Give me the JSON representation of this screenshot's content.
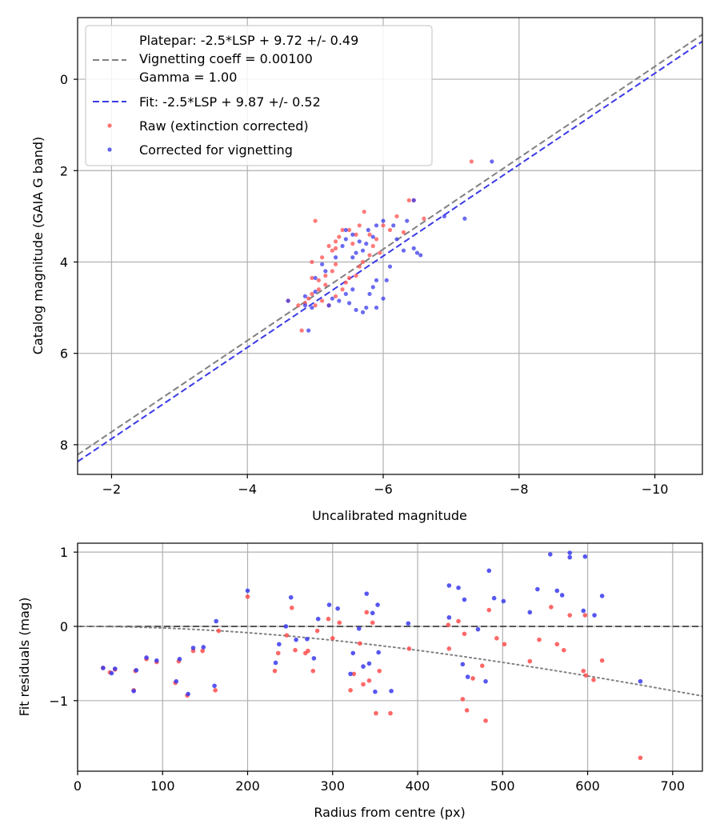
{
  "chart_data": [
    {
      "type": "scatter",
      "xlabel": "Uncalibrated magnitude",
      "ylabel": "Catalog magnitude (GAIA G band)",
      "xlim": [
        -1.5,
        -10.7
      ],
      "ylim": [
        8.65,
        -1.35
      ],
      "xticks": [
        -2,
        -4,
        -6,
        -8,
        -10
      ],
      "xtick_labels": [
        "−2",
        "−4",
        "−6",
        "−8",
        "−10"
      ],
      "yticks": [
        0,
        2,
        4,
        6,
        8
      ],
      "ytick_labels": [
        "0",
        "2",
        "4",
        "6",
        "8"
      ],
      "grid": true,
      "legend_position": "top-left",
      "legend": {
        "platepar_lines": [
          "Platepar: -2.5*LSP + 9.72 +/- 0.49",
          "Vignetting coeff = 0.00100",
          "Gamma = 1.00"
        ],
        "fit": "Fit: -2.5*LSP + 9.87 +/- 0.52",
        "raw": "Raw (extinction corrected)",
        "corrected": "Corrected for vignetting"
      },
      "colors": {
        "platepar": "#808080",
        "fit": "#3a3ae8",
        "raw": "#ff4d4d",
        "corrected": "#3a3aee",
        "overlap": "#7a0a8a"
      },
      "lines": [
        {
          "name": "Platepar",
          "slope_lsp": -2.5,
          "intercept": 9.72
        },
        {
          "name": "Fit",
          "slope_lsp": -2.5,
          "intercept": 9.87
        }
      ],
      "series": [
        {
          "name": "Raw (extinction corrected)",
          "points": [
            [
              -7.3,
              1.8
            ],
            [
              -6.6,
              3.05
            ],
            [
              -6.45,
              2.65
            ],
            [
              -6.38,
              2.65
            ],
            [
              -6.2,
              3.0
            ],
            [
              -6.0,
              3.2
            ],
            [
              -5.9,
              3.5
            ],
            [
              -5.8,
              3.4
            ],
            [
              -5.72,
              2.9
            ],
            [
              -5.65,
              3.2
            ],
            [
              -5.6,
              3.4
            ],
            [
              -5.55,
              3.6
            ],
            [
              -5.5,
              3.3
            ],
            [
              -5.4,
              3.3
            ],
            [
              -5.35,
              3.45
            ],
            [
              -5.3,
              3.55
            ],
            [
              -5.3,
              3.7
            ],
            [
              -5.25,
              3.75
            ],
            [
              -5.2,
              3.65
            ],
            [
              -5.1,
              3.9
            ],
            [
              -5.0,
              3.1
            ],
            [
              -4.95,
              4.0
            ],
            [
              -5.3,
              4.05
            ],
            [
              -5.25,
              4.2
            ],
            [
              -5.15,
              4.3
            ],
            [
              -5.05,
              4.4
            ],
            [
              -4.95,
              4.35
            ],
            [
              -5.15,
              4.5
            ],
            [
              -5.05,
              4.6
            ],
            [
              -4.95,
              4.7
            ],
            [
              -4.9,
              4.8
            ],
            [
              -5.1,
              4.85
            ],
            [
              -4.85,
              4.9
            ],
            [
              -4.75,
              4.95
            ],
            [
              -5.2,
              4.95
            ],
            [
              -5.0,
              4.95
            ],
            [
              -5.3,
              4.75
            ],
            [
              -5.4,
              4.6
            ],
            [
              -5.45,
              4.45
            ],
            [
              -5.5,
              4.35
            ],
            [
              -5.6,
              4.3
            ],
            [
              -5.65,
              4.1
            ],
            [
              -5.7,
              4.0
            ],
            [
              -4.8,
              5.5
            ],
            [
              -4.6,
              4.85
            ],
            [
              -5.8,
              3.85
            ],
            [
              -5.85,
              3.65
            ],
            [
              -5.95,
              3.8
            ],
            [
              -6.1,
              3.3
            ],
            [
              -6.3,
              3.35
            ]
          ]
        },
        {
          "name": "Corrected for vignetting",
          "points": [
            [
              -7.6,
              1.8
            ],
            [
              -7.2,
              3.05
            ],
            [
              -6.9,
              3.0
            ],
            [
              -6.45,
              2.65
            ],
            [
              -6.35,
              3.1
            ],
            [
              -6.45,
              3.7
            ],
            [
              -6.5,
              3.8
            ],
            [
              -6.55,
              3.85
            ],
            [
              -6.3,
              3.75
            ],
            [
              -6.2,
              3.5
            ],
            [
              -6.15,
              3.2
            ],
            [
              -6.0,
              3.1
            ],
            [
              -5.9,
              3.2
            ],
            [
              -5.85,
              3.45
            ],
            [
              -5.78,
              3.3
            ],
            [
              -5.75,
              3.6
            ],
            [
              -5.7,
              3.75
            ],
            [
              -5.6,
              3.8
            ],
            [
              -5.55,
              3.9
            ],
            [
              -5.45,
              3.5
            ],
            [
              -5.4,
              3.65
            ],
            [
              -6.1,
              4.1
            ],
            [
              -6.05,
              4.4
            ],
            [
              -6.0,
              4.8
            ],
            [
              -5.9,
              4.4
            ],
            [
              -5.85,
              4.55
            ],
            [
              -5.8,
              4.7
            ],
            [
              -5.75,
              5.0
            ],
            [
              -5.7,
              5.1
            ],
            [
              -5.6,
              5.05
            ],
            [
              -5.9,
              5.0
            ],
            [
              -5.5,
              4.9
            ],
            [
              -5.55,
              4.6
            ],
            [
              -5.45,
              4.7
            ],
            [
              -5.35,
              4.85
            ],
            [
              -5.25,
              4.8
            ],
            [
              -5.2,
              4.95
            ],
            [
              -5.15,
              4.2
            ],
            [
              -5.1,
              4.05
            ],
            [
              -5.0,
              4.35
            ],
            [
              -5.3,
              3.9
            ],
            [
              -5.65,
              3.55
            ],
            [
              -5.55,
              3.4
            ],
            [
              -5.45,
              3.3
            ],
            [
              -4.95,
              5.0
            ],
            [
              -4.85,
              4.95
            ],
            [
              -4.9,
              5.5
            ],
            [
              -4.6,
              4.85
            ],
            [
              -5.0,
              4.65
            ],
            [
              -4.85,
              4.75
            ]
          ]
        }
      ]
    },
    {
      "type": "scatter",
      "xlabel": "Radius from centre (px)",
      "ylabel": "Fit residuals (mag)",
      "xlim": [
        0,
        735
      ],
      "ylim": [
        -1.95,
        1.12
      ],
      "xticks": [
        0,
        100,
        200,
        300,
        400,
        500,
        600,
        700
      ],
      "xtick_labels": [
        "0",
        "100",
        "200",
        "300",
        "400",
        "500",
        "600",
        "700"
      ],
      "yticks": [
        1,
        0,
        -1
      ],
      "ytick_labels": [
        "1",
        "0",
        "−1"
      ],
      "grid": true,
      "zero_line": 0,
      "vignetting_coeff": 0.001,
      "vignetting_curve": "dotted",
      "series": [
        {
          "name": "Raw",
          "points": [
            [
              30,
              -0.56
            ],
            [
              38,
              -0.62
            ],
            [
              44,
              -0.58
            ],
            [
              66,
              -0.86
            ],
            [
              68,
              -0.6
            ],
            [
              81,
              -0.44
            ],
            [
              93,
              -0.48
            ],
            [
              115,
              -0.76
            ],
            [
              119,
              -0.47
            ],
            [
              129,
              -0.93
            ],
            [
              136,
              -0.33
            ],
            [
              147,
              -0.33
            ],
            [
              162,
              -0.86
            ],
            [
              166,
              -0.06
            ],
            [
              200,
              0.4
            ],
            [
              232,
              -0.6
            ],
            [
              236,
              -0.36
            ],
            [
              246,
              -0.12
            ],
            [
              252,
              0.25
            ],
            [
              256,
              -0.32
            ],
            [
              268,
              -0.36
            ],
            [
              271,
              -0.33
            ],
            [
              277,
              -0.6
            ],
            [
              282,
              -0.06
            ],
            [
              295,
              0.1
            ],
            [
              300,
              -0.16
            ],
            [
              308,
              0.05
            ],
            [
              321,
              -0.86
            ],
            [
              325,
              -0.64
            ],
            [
              332,
              -0.23
            ],
            [
              336,
              -0.78
            ],
            [
              340,
              0.19
            ],
            [
              343,
              -0.73
            ],
            [
              347,
              0.05
            ],
            [
              351,
              -1.17
            ],
            [
              355,
              -0.6
            ],
            [
              368,
              -1.17
            ],
            [
              390,
              -0.3
            ],
            [
              436,
              0.02
            ],
            [
              437,
              -0.3
            ],
            [
              448,
              0.07
            ],
            [
              453,
              -0.98
            ],
            [
              455,
              -0.1
            ],
            [
              458,
              -1.13
            ],
            [
              465,
              -0.7
            ],
            [
              476,
              -0.53
            ],
            [
              480,
              -1.27
            ],
            [
              484,
              0.22
            ],
            [
              493,
              -0.16
            ],
            [
              502,
              -0.24
            ],
            [
              532,
              -0.47
            ],
            [
              543,
              -0.18
            ],
            [
              557,
              0.26
            ],
            [
              564,
              -0.24
            ],
            [
              572,
              -0.32
            ],
            [
              579,
              0.15
            ],
            [
              595,
              -0.6
            ],
            [
              597,
              0.15
            ],
            [
              598,
              -0.66
            ],
            [
              607,
              -0.72
            ],
            [
              617,
              -0.46
            ],
            [
              662,
              -1.77
            ]
          ]
        },
        {
          "name": "Corrected for vignetting",
          "points": [
            [
              30,
              -0.56
            ],
            [
              40,
              -0.63
            ],
            [
              44,
              -0.57
            ],
            [
              66,
              -0.87
            ],
            [
              69,
              -0.59
            ],
            [
              81,
              -0.42
            ],
            [
              93,
              -0.46
            ],
            [
              116,
              -0.74
            ],
            [
              120,
              -0.44
            ],
            [
              130,
              -0.91
            ],
            [
              136,
              -0.29
            ],
            [
              148,
              -0.28
            ],
            [
              161,
              -0.8
            ],
            [
              163,
              0.07
            ],
            [
              200,
              0.48
            ],
            [
              233,
              -0.49
            ],
            [
              237,
              -0.24
            ],
            [
              245,
              0.0
            ],
            [
              251,
              0.39
            ],
            [
              257,
              -0.18
            ],
            [
              270,
              -0.17
            ],
            [
              278,
              -0.43
            ],
            [
              283,
              0.1
            ],
            [
              296,
              0.29
            ],
            [
              306,
              0.24
            ],
            [
              321,
              -0.64
            ],
            [
              324,
              -0.36
            ],
            [
              331,
              -0.03
            ],
            [
              336,
              -0.54
            ],
            [
              340,
              0.44
            ],
            [
              343,
              -0.5
            ],
            [
              347,
              0.18
            ],
            [
              350,
              -0.88
            ],
            [
              353,
              0.29
            ],
            [
              354,
              -0.35
            ],
            [
              369,
              -0.87
            ],
            [
              389,
              0.04
            ],
            [
              437,
              0.55
            ],
            [
              437,
              0.12
            ],
            [
              448,
              0.52
            ],
            [
              453,
              -0.51
            ],
            [
              455,
              0.36
            ],
            [
              459,
              -0.68
            ],
            [
              471,
              -0.04
            ],
            [
              480,
              -0.74
            ],
            [
              484,
              0.75
            ],
            [
              490,
              0.38
            ],
            [
              501,
              0.34
            ],
            [
              532,
              0.19
            ],
            [
              541,
              0.5
            ],
            [
              556,
              0.97
            ],
            [
              564,
              0.48
            ],
            [
              570,
              0.42
            ],
            [
              579,
              0.99
            ],
            [
              579,
              0.93
            ],
            [
              595,
              0.21
            ],
            [
              597,
              0.94
            ],
            [
              608,
              0.15
            ],
            [
              617,
              0.41
            ],
            [
              662,
              -0.74
            ]
          ]
        }
      ]
    }
  ]
}
